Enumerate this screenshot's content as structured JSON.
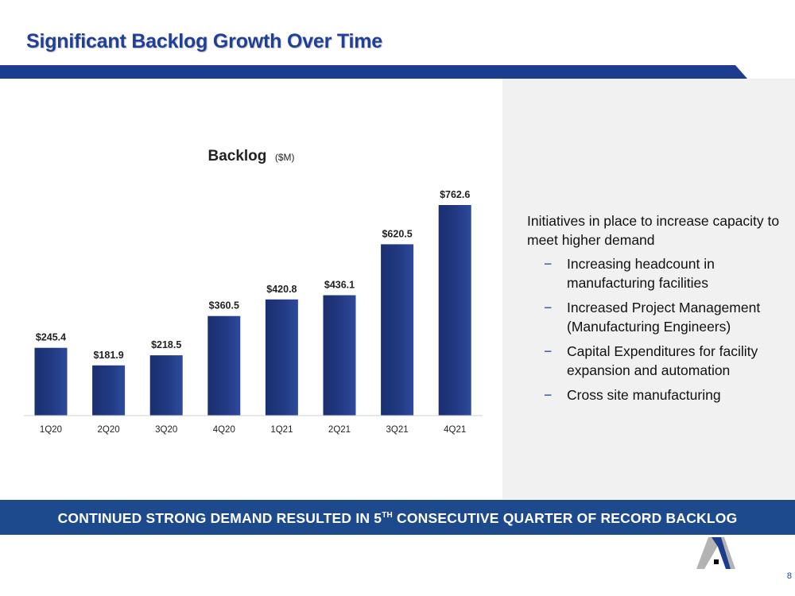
{
  "slide": {
    "title": "Significant Backlog Growth Over Time",
    "page_number": "8"
  },
  "colors": {
    "title_blue": "#1f3f99",
    "bar_dark": "#1b2f70",
    "bar_light": "#2d4a9c",
    "banner": "#1c4a8c",
    "panel_bg": "#f1f1f1",
    "logo_grey": "#b3b3b3"
  },
  "chart_data": {
    "type": "bar",
    "title": "Backlog",
    "title_unit": "($M)",
    "categories": [
      "1Q20",
      "2Q20",
      "3Q20",
      "4Q20",
      "1Q21",
      "2Q21",
      "3Q21",
      "4Q21"
    ],
    "values": [
      245.4,
      181.9,
      218.5,
      360.5,
      420.8,
      436.1,
      620.5,
      762.6
    ],
    "value_labels": [
      "$245.4",
      "$181.9",
      "$218.5",
      "$360.5",
      "$420.8",
      "$436.1",
      "$620.5",
      "$762.6"
    ],
    "ylim": [
      0,
      762.6
    ],
    "xlabel": "",
    "ylabel": "",
    "grid": false
  },
  "panel": {
    "intro": "Initiatives in place to increase capacity to meet higher demand",
    "bullets": [
      "Increasing headcount in manufacturing facilities",
      "Increased Project Management (Manufacturing Engineers)",
      "Capital Expenditures for facility expansion and automation",
      "Cross site manufacturing"
    ],
    "bullet_marker": "−"
  },
  "banner": {
    "text_before": "CONTINUED STRONG DEMAND RESULTED IN 5",
    "superscript": "TH",
    "text_after": " CONSECUTIVE QUARTER OF RECORD BACKLOG"
  }
}
